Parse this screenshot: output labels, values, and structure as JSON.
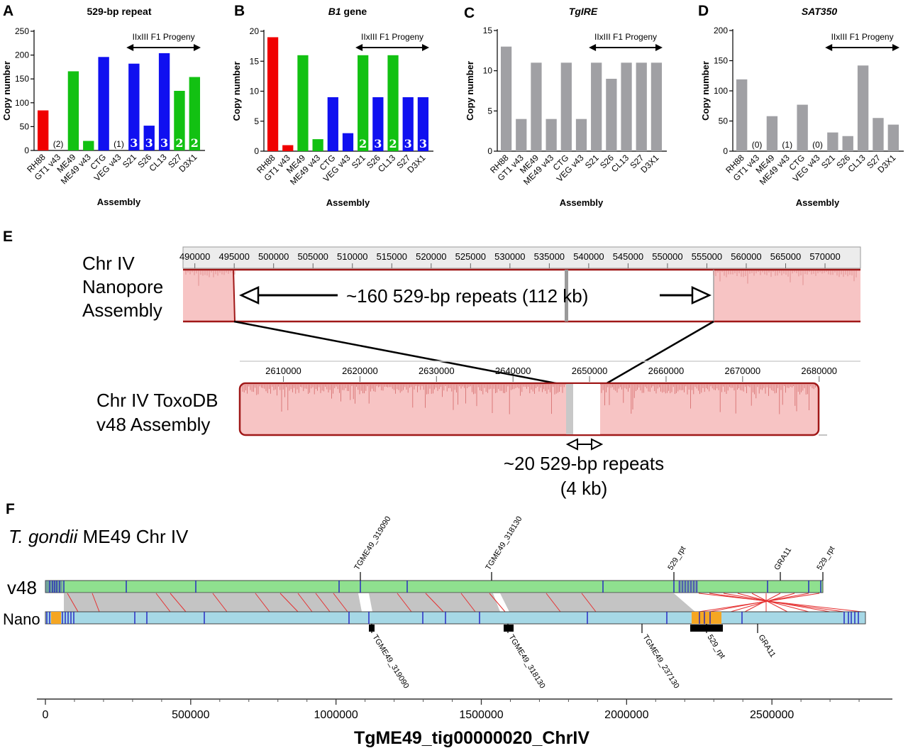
{
  "panels": {
    "A": "A",
    "B": "B",
    "C": "C",
    "D": "D",
    "E": "E",
    "F": "F"
  },
  "colors": {
    "red": "#f00000",
    "green": "#12c112",
    "blue": "#1010f0",
    "gray": "#a0a0a4",
    "pink": "#f7c4c4",
    "darkred": "#a01818",
    "v48_track": "#8fe08f",
    "nano_track": "#a6d8e6",
    "synteny": "#c0c0c0",
    "orange": "#f5a623"
  },
  "chart_data": [
    {
      "type": "bar",
      "title": "529-bp repeat",
      "xlabel": "Assembly",
      "ylabel": "Copy number",
      "ylim": [
        0,
        250
      ],
      "yticks": [
        0,
        50,
        100,
        150,
        200,
        250
      ],
      "categories": [
        "RH88",
        "GT1 v43",
        "ME49",
        "ME49 v43",
        "CTG",
        "VEG v43",
        "S21",
        "S26",
        "CL13",
        "S27",
        "D3X1"
      ],
      "values": [
        84,
        0,
        166,
        20,
        196,
        0,
        182,
        52,
        204,
        125,
        154
      ],
      "bar_colors": [
        "red",
        "red",
        "green",
        "green",
        "blue",
        "blue",
        "blue",
        "blue",
        "blue",
        "green",
        "green"
      ],
      "above_labels": [
        "",
        "(2)",
        "",
        "",
        "",
        "(1)",
        "",
        "",
        "",
        "",
        ""
      ],
      "inside_labels": [
        "",
        "",
        "",
        "",
        "",
        "",
        "3",
        "3",
        "3",
        "2",
        "2"
      ],
      "progeny_label": "IIxIII F1 Progeny"
    },
    {
      "type": "bar",
      "title": "B1 gene",
      "title_italic": true,
      "title_suffix": " gene",
      "title_italic_part": "B1",
      "xlabel": "Assembly",
      "ylabel": "Copy number",
      "ylim": [
        0,
        20
      ],
      "yticks": [
        0,
        5,
        10,
        15,
        20
      ],
      "categories": [
        "RH88",
        "GT1 v43",
        "ME49",
        "ME49 v43",
        "CTG",
        "VEG v43",
        "S21",
        "S26",
        "CL13",
        "S27",
        "D3X1"
      ],
      "values": [
        19,
        1,
        16,
        2,
        9,
        3,
        16,
        9,
        16,
        9,
        9
      ],
      "bar_colors": [
        "red",
        "red",
        "green",
        "green",
        "blue",
        "blue",
        "green",
        "blue",
        "green",
        "blue",
        "blue"
      ],
      "above_labels": [
        "",
        "",
        "",
        "",
        "",
        "",
        "",
        "",
        "",
        "",
        ""
      ],
      "inside_labels": [
        "",
        "",
        "",
        "",
        "",
        "",
        "2",
        "3",
        "2",
        "3",
        "3"
      ],
      "progeny_label": "IIxIII F1 Progeny"
    },
    {
      "type": "bar",
      "title": "TgIRE",
      "title_italic": true,
      "xlabel": "Assembly",
      "ylabel": "Copy number",
      "ylim": [
        0,
        15
      ],
      "yticks": [
        0,
        5,
        10,
        15
      ],
      "categories": [
        "RH88",
        "GT1 v43",
        "ME49",
        "ME49 v43",
        "CTG",
        "VEG v43",
        "S21",
        "S26",
        "CL13",
        "S27",
        "D3X1"
      ],
      "values": [
        13,
        4,
        11,
        4,
        11,
        4,
        11,
        9,
        11,
        11,
        11
      ],
      "bar_colors": [
        "gray",
        "gray",
        "gray",
        "gray",
        "gray",
        "gray",
        "gray",
        "gray",
        "gray",
        "gray",
        "gray"
      ],
      "above_labels": [
        "",
        "",
        "",
        "",
        "",
        "",
        "",
        "",
        "",
        "",
        ""
      ],
      "inside_labels": [
        "",
        "",
        "",
        "",
        "",
        "",
        "",
        "",
        "",
        "",
        ""
      ],
      "progeny_label": "IIxIII F1 Progeny"
    },
    {
      "type": "bar",
      "title": "SAT350",
      "title_italic": true,
      "xlabel": "Assembly",
      "ylabel": "Copy number",
      "ylim": [
        0,
        200
      ],
      "yticks": [
        0,
        50,
        100,
        150,
        200
      ],
      "categories": [
        "RH88",
        "GT1 v43",
        "ME49",
        "ME49 v43",
        "CTG",
        "VEG v43",
        "S21",
        "S26",
        "CL13",
        "S27",
        "D3X1"
      ],
      "values": [
        119,
        0,
        58,
        0,
        77,
        0,
        31,
        25,
        142,
        55,
        44
      ],
      "bar_colors": [
        "gray",
        "gray",
        "gray",
        "gray",
        "gray",
        "gray",
        "gray",
        "gray",
        "gray",
        "gray",
        "gray"
      ],
      "above_labels": [
        "",
        "(0)",
        "",
        "(1)",
        "",
        "(0)",
        "",
        "",
        "",
        "",
        ""
      ],
      "inside_labels": [
        "",
        "",
        "",
        "",
        "",
        "",
        "",
        "",
        "",
        "",
        ""
      ],
      "progeny_label": "IIxIII F1 Progeny"
    }
  ],
  "panelE": {
    "nanopore_label": [
      "Chr IV",
      "Nanopore",
      "Assembly"
    ],
    "toxodb_label": [
      "Chr IV ToxoDB",
      "v48 Assembly"
    ],
    "top_ruler": [
      "490000",
      "495000",
      "500000",
      "505000",
      "510000",
      "515000",
      "520000",
      "525000",
      "530000",
      "535000",
      "540000",
      "545000",
      "550000",
      "555000",
      "560000",
      "565000",
      "570000"
    ],
    "bottom_ruler": [
      "2610000",
      "2620000",
      "2630000",
      "2640000",
      "2650000",
      "2660000",
      "2670000",
      "2680000"
    ],
    "top_repeat_text": "~160 529-bp repeats (112  kb)",
    "bottom_repeat_text_1": "~20 529-bp repeats",
    "bottom_repeat_text_2": "(4 kb)"
  },
  "panelF": {
    "title_species": "T. gondii",
    "title_rest": " ME49 Chr IV",
    "track_v48": "v48",
    "track_nano": "Nano",
    "top_genes": [
      "TGME49_319090",
      "TGME49_318130",
      "529_rpt",
      "GRA11",
      "529_rpt"
    ],
    "bottom_genes": [
      "TGME49_319090",
      "TGME49_318130",
      "TGME49_237130",
      "529_rpt",
      "GRA11"
    ],
    "axis_ticks": [
      "0",
      "500000",
      "1000000",
      "1500000",
      "2000000",
      "2500000"
    ],
    "axis_title": "TgME49_tig00000020_ChrIV"
  }
}
